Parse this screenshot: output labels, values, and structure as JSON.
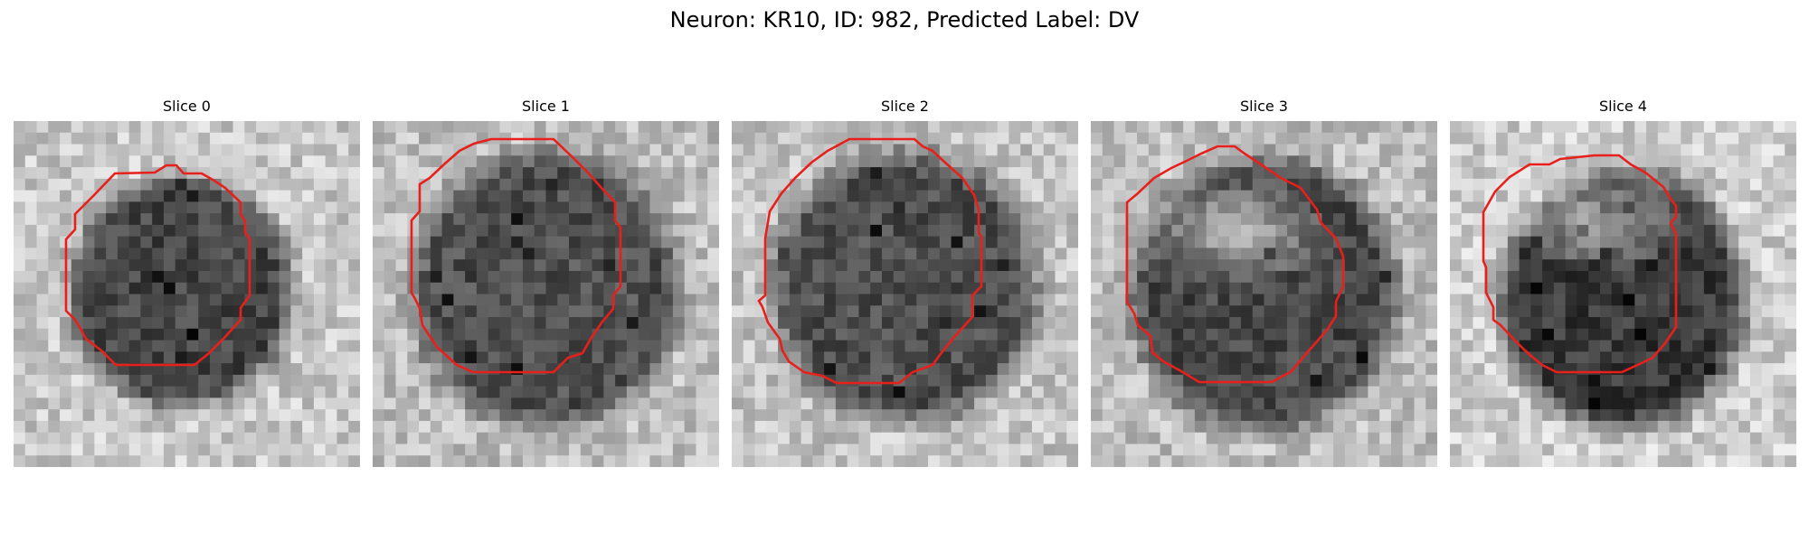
{
  "figure": {
    "title": "Neuron: KR10, ID: 982, Predicted Label: DV"
  },
  "colors": {
    "contour": "#e8201c",
    "background": "#ffffff"
  },
  "slices": [
    {
      "label": "Slice 0"
    },
    {
      "label": "Slice 1"
    },
    {
      "label": "Slice 2"
    },
    {
      "label": "Slice 3"
    },
    {
      "label": "Slice 4"
    }
  ]
}
